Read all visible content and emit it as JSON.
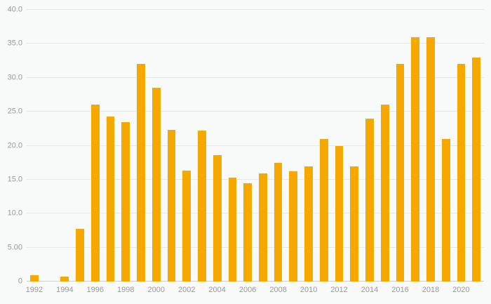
{
  "chart_data": {
    "type": "bar",
    "title": "",
    "xlabel": "",
    "ylabel": "",
    "x": [
      1992,
      1993,
      1994,
      1995,
      1996,
      1997,
      1998,
      1999,
      2000,
      2001,
      2002,
      2003,
      2004,
      2005,
      2006,
      2007,
      2008,
      2009,
      2010,
      2011,
      2012,
      2013,
      2014,
      2015,
      2016,
      2017,
      2018,
      2019,
      2020,
      2021
    ],
    "values": [
      0.9,
      0,
      0.7,
      7.8,
      26.0,
      24.3,
      23.5,
      32.0,
      28.5,
      22.3,
      16.3,
      22.2,
      18.6,
      15.3,
      14.5,
      15.9,
      17.5,
      16.2,
      17.0,
      21.0,
      20.0,
      17.0,
      24.0,
      26.0,
      32.0,
      36.0,
      36.0,
      21.0,
      32.0,
      33.0
    ],
    "ylim": [
      0,
      40
    ],
    "y_ticks": [
      {
        "value": 0,
        "label": "0"
      },
      {
        "value": 5,
        "label": "5.00"
      },
      {
        "value": 10,
        "label": "10.0"
      },
      {
        "value": 15,
        "label": "15.0"
      },
      {
        "value": 20,
        "label": "20.0"
      },
      {
        "value": 25,
        "label": "25.0"
      },
      {
        "value": 30,
        "label": "30.0"
      },
      {
        "value": 35,
        "label": "35.0"
      },
      {
        "value": 40,
        "label": "40.0"
      }
    ],
    "x_tick_labels": [
      "1992",
      "1994",
      "1996",
      "1998",
      "2000",
      "2002",
      "2004",
      "2006",
      "2008",
      "2010",
      "2012",
      "2014",
      "2016",
      "2018",
      "2020"
    ],
    "grid": true,
    "legend": false,
    "colors": {
      "bar": "#F5A800",
      "background": "#F8F9F9",
      "gridline": "#E7E7E7",
      "axis_line": "#CFCFCF",
      "label_text": "#999999"
    }
  }
}
